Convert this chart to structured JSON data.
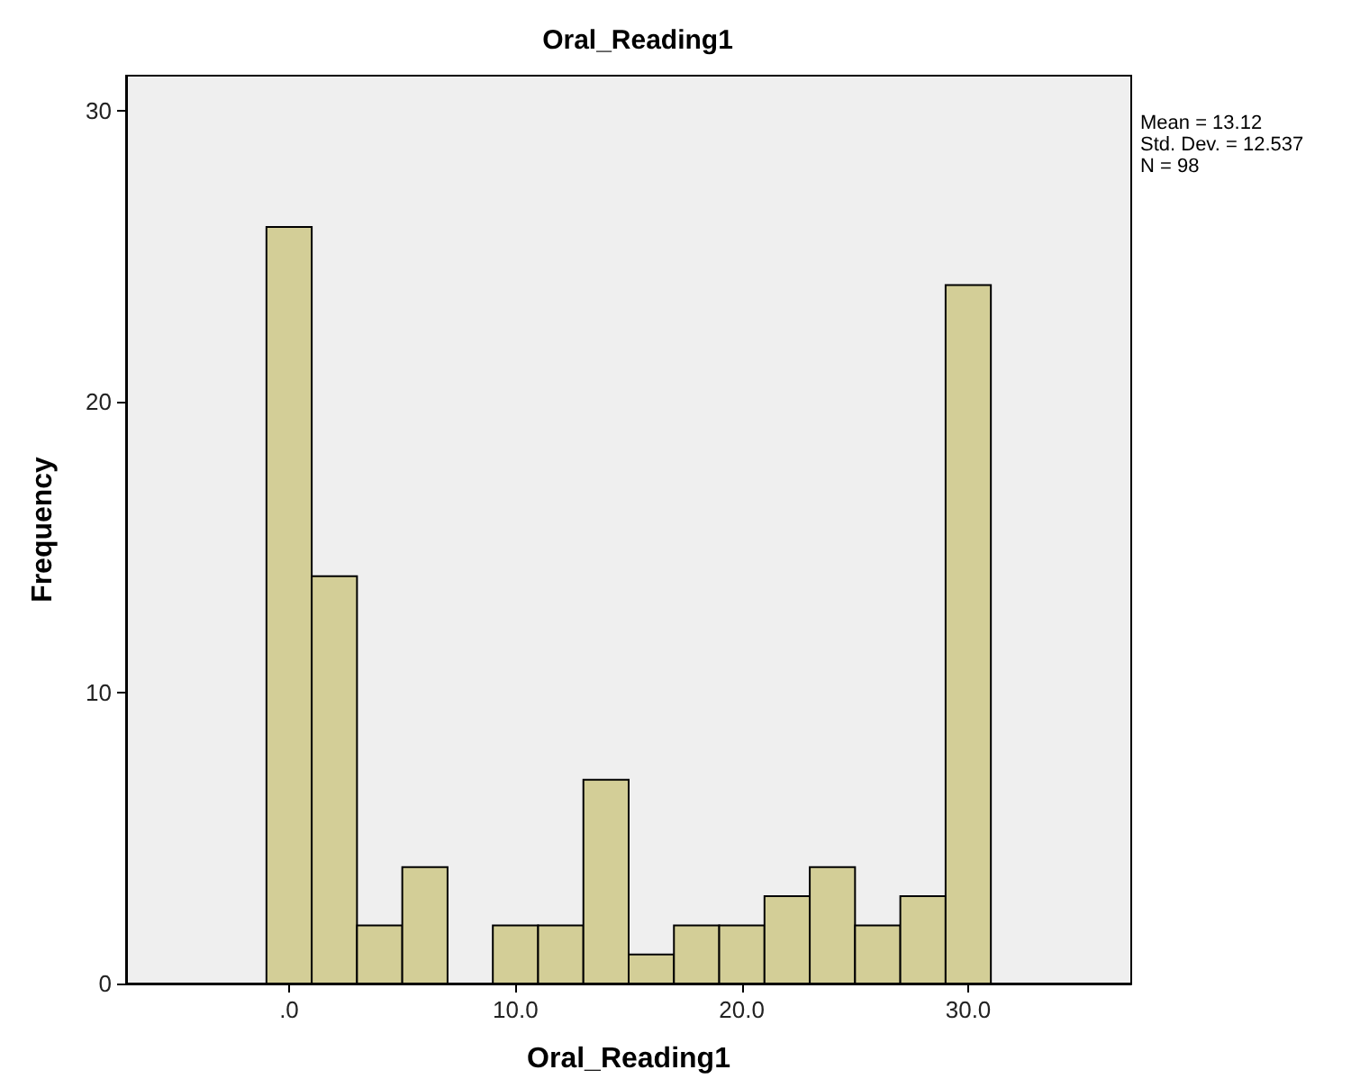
{
  "chart_data": {
    "type": "histogram",
    "title": "Oral_Reading1",
    "xlabel": "Oral_Reading1",
    "ylabel": "Frequency",
    "bins": [
      -1,
      1,
      3,
      5,
      7,
      9,
      11,
      13,
      15,
      17,
      19,
      21,
      23,
      25,
      27,
      29,
      31
    ],
    "values": [
      26,
      14,
      2,
      4,
      0,
      2,
      2,
      7,
      1,
      2,
      2,
      3,
      4,
      2,
      3,
      24
    ],
    "color": "#d3ce97",
    "xlim": [
      -7.2,
      37.2
    ],
    "xticks": [
      {
        "value": 0,
        "label": ".0"
      },
      {
        "value": 10,
        "label": "10.0"
      },
      {
        "value": 20,
        "label": "20.0"
      },
      {
        "value": 30,
        "label": "30.0"
      }
    ],
    "ylim": [
      0,
      31.2
    ],
    "yticks": [
      0,
      10,
      20,
      30
    ],
    "grid": false,
    "annotations": [
      "Mean = 13.12",
      "Std. Dev. = 12.537",
      "N = 98"
    ]
  }
}
